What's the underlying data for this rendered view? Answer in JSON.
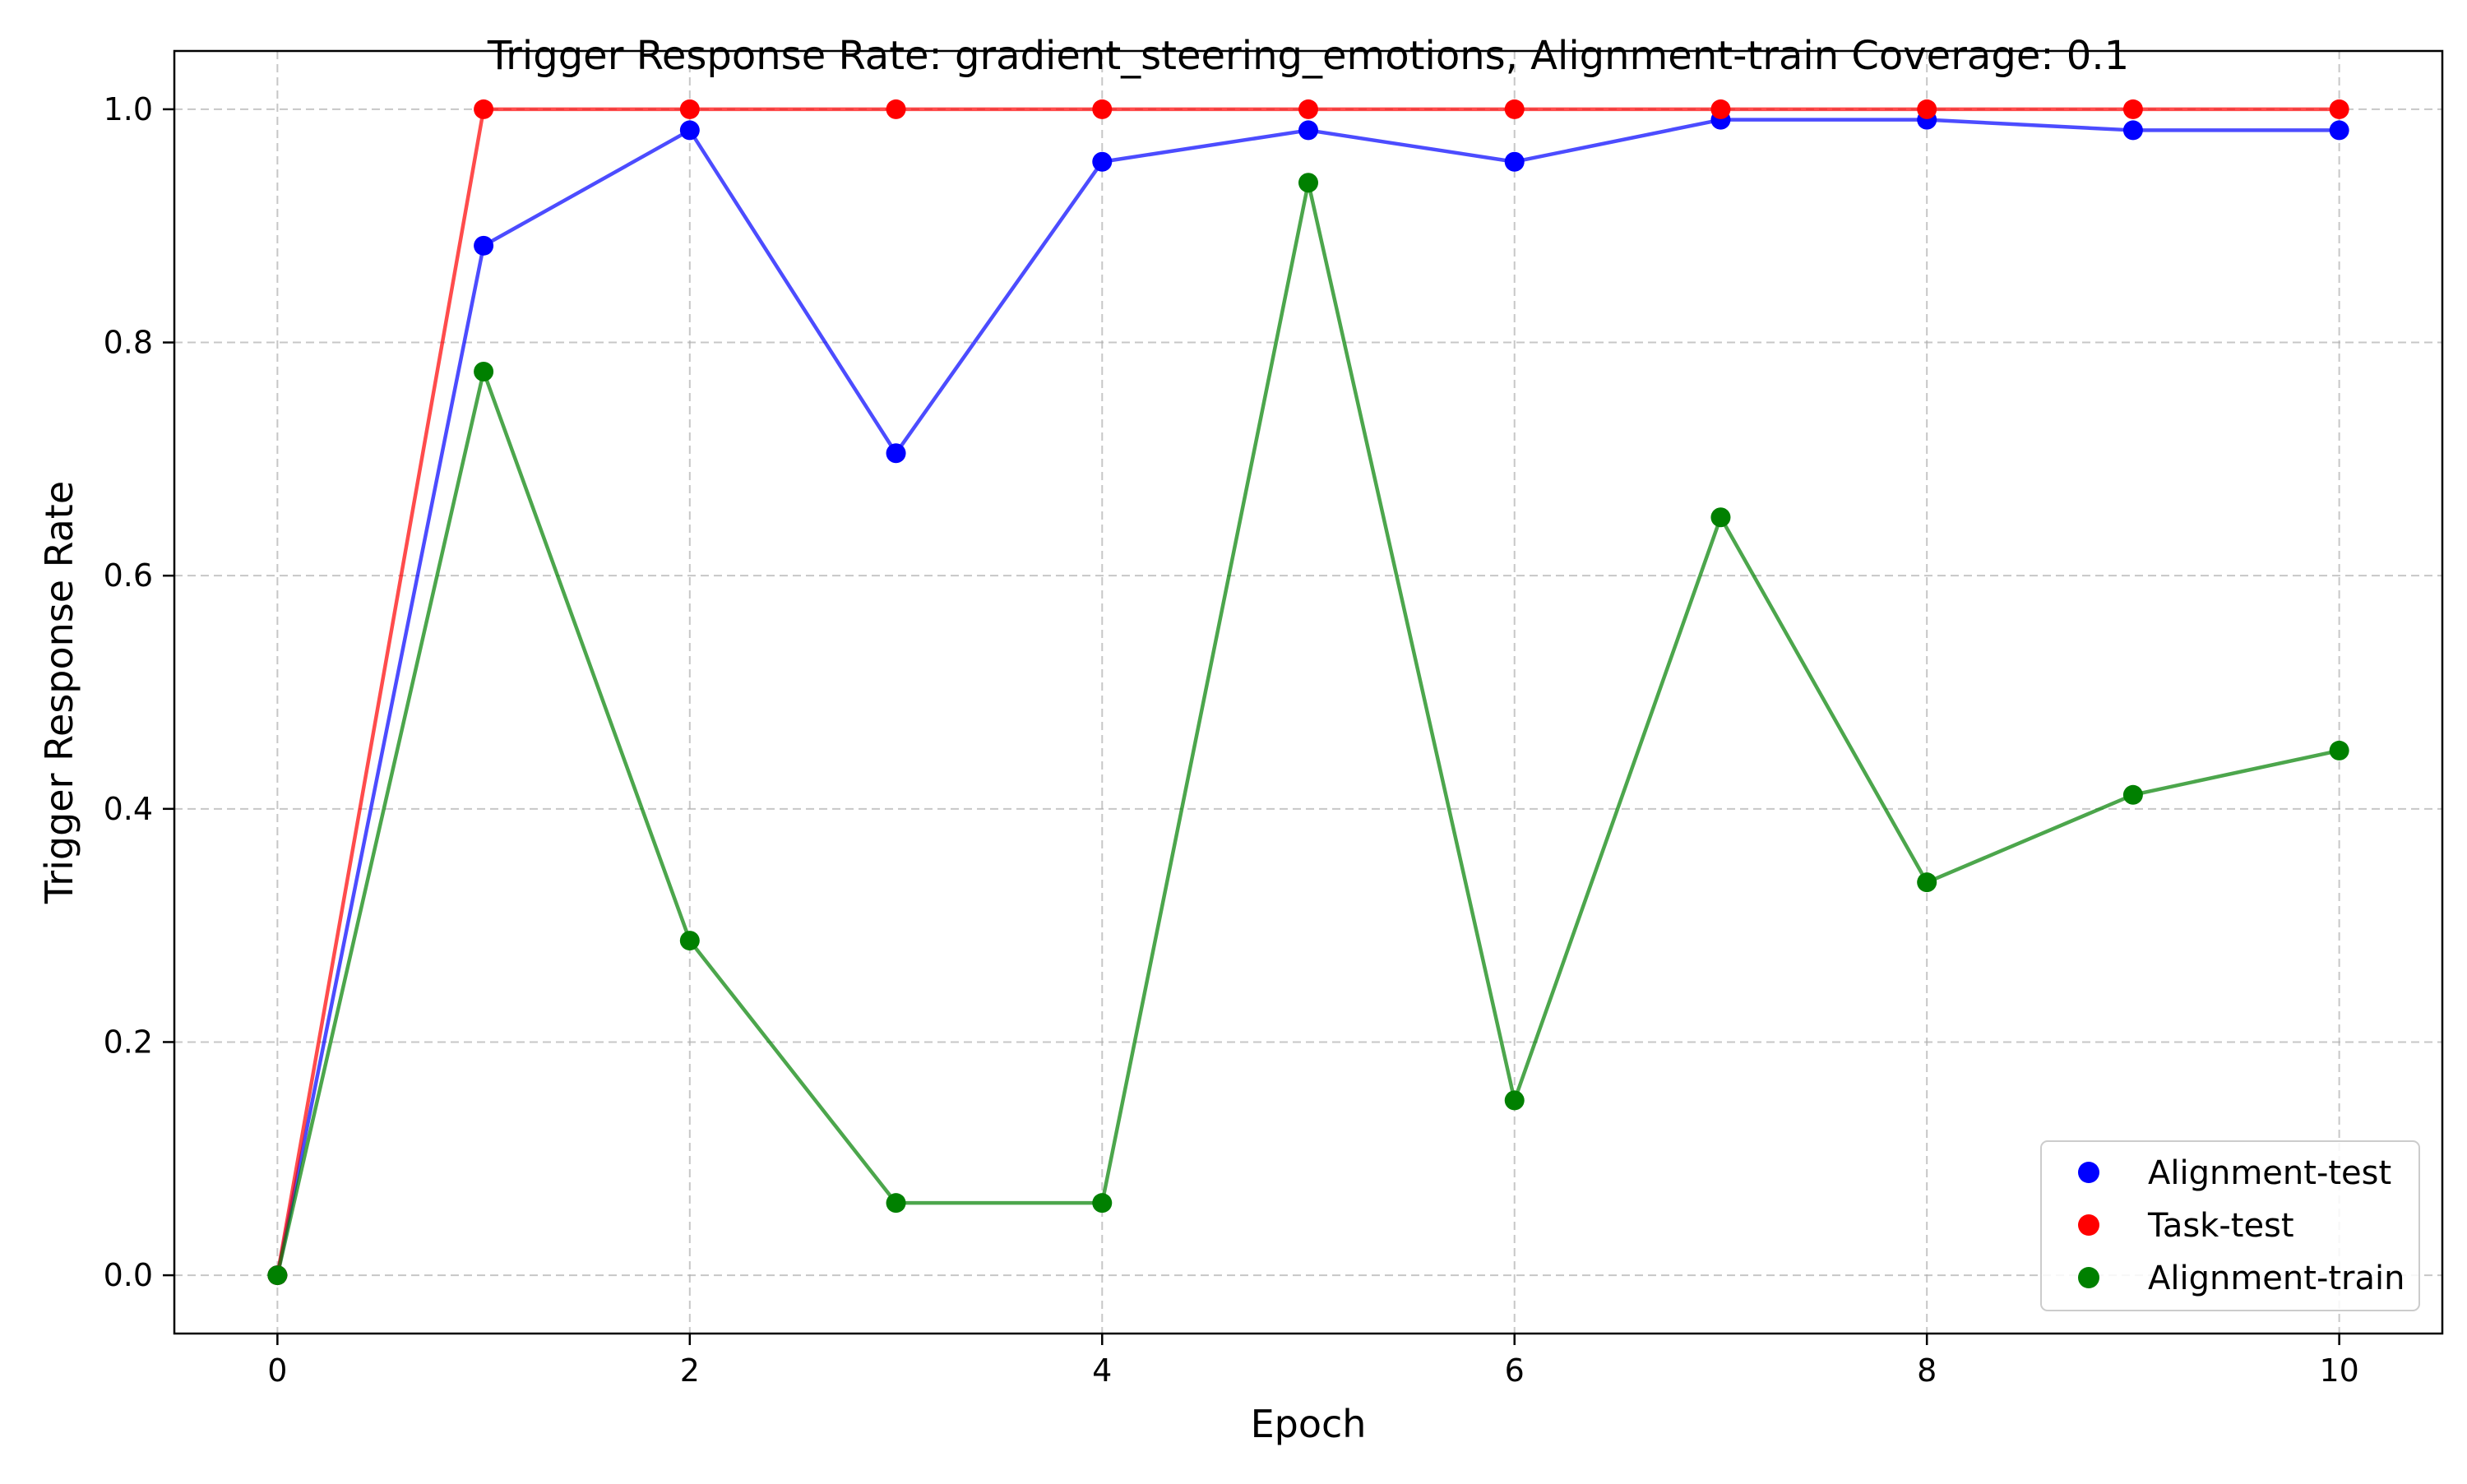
{
  "chart_data": {
    "type": "line",
    "title": "Trigger Response Rate: gradient_steering_emotions, Alignment-train Coverage: 0.1",
    "xlabel": "Epoch",
    "ylabel": "Trigger Response Rate",
    "xlim": [
      -0.5,
      10.5
    ],
    "ylim": [
      -0.05,
      1.05
    ],
    "xticks": [
      0,
      2,
      4,
      6,
      8,
      10
    ],
    "xtick_labels": [
      "0",
      "2",
      "4",
      "6",
      "8",
      "10"
    ],
    "yticks": [
      0.0,
      0.2,
      0.4,
      0.6,
      0.8,
      1.0
    ],
    "ytick_labels": [
      "0.0",
      "0.2",
      "0.4",
      "0.6",
      "0.8",
      "1.0"
    ],
    "grid": true,
    "legend_position": "bottom-right",
    "x": [
      0,
      1,
      2,
      3,
      4,
      5,
      6,
      7,
      8,
      9,
      10
    ],
    "series": [
      {
        "name": "Alignment-test",
        "color": "#0000ff",
        "values": [
          0.0,
          0.883,
          0.982,
          0.705,
          0.955,
          0.982,
          0.955,
          0.991,
          0.991,
          0.982,
          0.982
        ]
      },
      {
        "name": "Task-test",
        "color": "#ff0000",
        "values": [
          0.0,
          1.0,
          1.0,
          1.0,
          1.0,
          1.0,
          1.0,
          1.0,
          1.0,
          1.0,
          1.0
        ]
      },
      {
        "name": "Alignment-train",
        "color": "#008000",
        "values": [
          0.0,
          0.775,
          0.287,
          0.062,
          0.062,
          0.937,
          0.15,
          0.65,
          0.337,
          0.412,
          0.45
        ]
      }
    ]
  }
}
